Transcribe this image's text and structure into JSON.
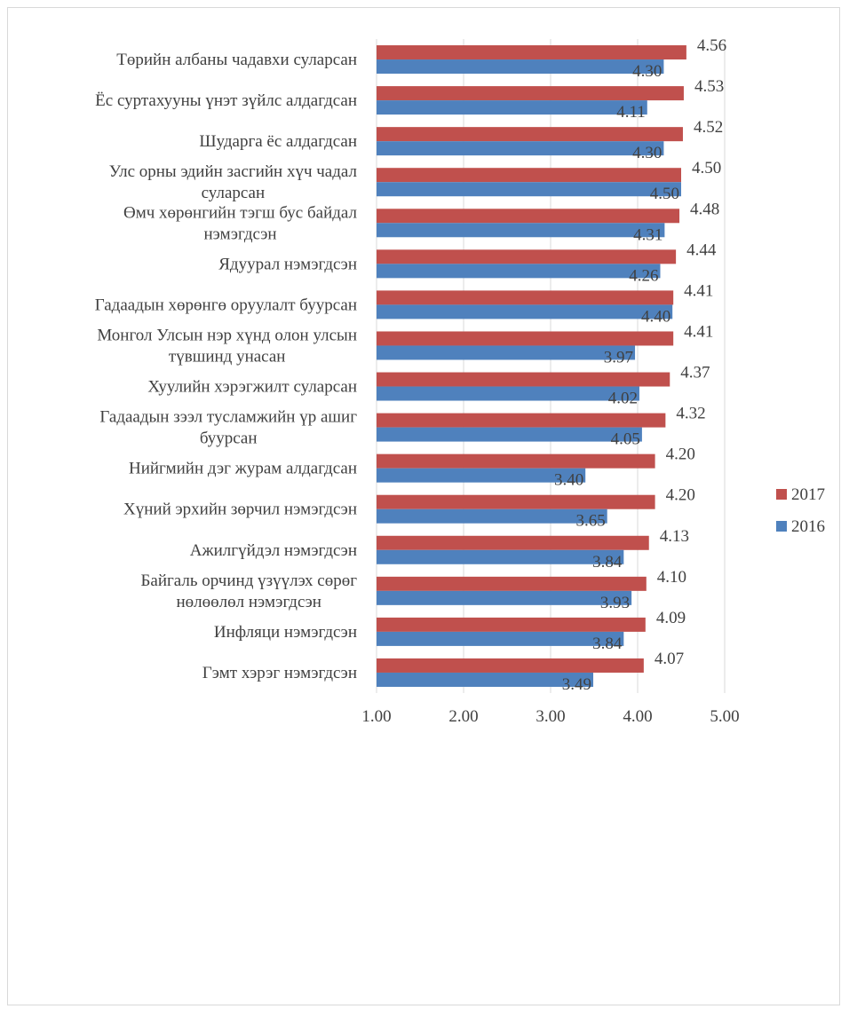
{
  "chart_data": {
    "type": "bar",
    "orientation": "horizontal",
    "title": "",
    "xlabel": "",
    "ylabel": "",
    "xlim": [
      1,
      5
    ],
    "x_ticks": [
      "1.00",
      "2.00",
      "3.00",
      "4.00",
      "5.00"
    ],
    "grid": "vertical",
    "legend_position": "right",
    "categories": [
      [
        "Төрийн албаны чадавхи суларсан"
      ],
      [
        "Ёс суртахууны үнэт зүйлс алдагдсан"
      ],
      [
        "Шударга ёс алдагдсан"
      ],
      [
        "Улс орны эдийн засгийн хүч чадал",
        "суларсан"
      ],
      [
        "Өмч хөрөнгийн тэгш бус байдал",
        "нэмэгдсэн"
      ],
      [
        "Ядуурал нэмэгдсэн"
      ],
      [
        "Гадаадын хөрөнгө оруулалт буурсан"
      ],
      [
        "Монгол Улсын нэр хүнд олон улсын",
        "түвшинд унасан"
      ],
      [
        "Хуулийн хэрэгжилт суларсан"
      ],
      [
        "Гадаадын зээл тусламжийн үр ашиг",
        "буурсан"
      ],
      [
        "Нийгмийн дэг журам алдагдсан"
      ],
      [
        "Хүний эрхийн зөрчил нэмэгдсэн"
      ],
      [
        "Ажилгүйдэл нэмэгдсэн"
      ],
      [
        "Байгаль орчинд үзүүлэх сөрөг",
        "нөлөөлөл нэмэгдсэн"
      ],
      [
        "Инфляци нэмэгдсэн"
      ],
      [
        "Гэмт хэрэг нэмэгдсэн"
      ]
    ],
    "series": [
      {
        "name": "2017",
        "color": "#c0504d",
        "values": [
          4.56,
          4.53,
          4.52,
          4.5,
          4.48,
          4.44,
          4.41,
          4.41,
          4.37,
          4.32,
          4.2,
          4.2,
          4.13,
          4.1,
          4.09,
          4.07
        ],
        "labels": [
          "4.56",
          "4.53",
          "4.52",
          "4.50",
          "4.48",
          "4.44",
          "4.41",
          "4.41",
          "4.37",
          "4.32",
          "4.20",
          "4.20",
          "4.13",
          "4.10",
          "4.09",
          "4.07"
        ]
      },
      {
        "name": "2016",
        "color": "#4f81bd",
        "values": [
          4.3,
          4.11,
          4.3,
          4.5,
          4.31,
          4.26,
          4.4,
          3.97,
          4.02,
          4.05,
          3.4,
          3.65,
          3.84,
          3.93,
          3.84,
          3.49
        ],
        "labels": [
          "4.30",
          "4.11",
          "4.30",
          "4.50",
          "4.31",
          "4.26",
          "4.40",
          "3.97",
          "4.02",
          "4.05",
          "3.40",
          "3.65",
          "3.84",
          "3.93",
          "3.84",
          "3.49"
        ]
      }
    ]
  }
}
